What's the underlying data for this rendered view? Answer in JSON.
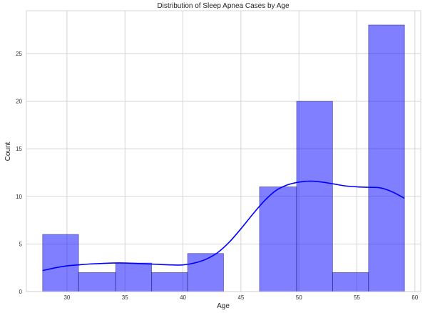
{
  "chart_data": {
    "type": "bar",
    "title": "Distribution of Sleep Apnea Cases by Age",
    "xlabel": "Age",
    "ylabel": "Count",
    "xlim": [
      26.5,
      60.5
    ],
    "ylim": [
      0,
      29.5
    ],
    "xticks": [
      30,
      35,
      40,
      45,
      50,
      55,
      60
    ],
    "yticks": [
      0,
      5,
      10,
      15,
      20,
      25
    ],
    "grid": true,
    "bar_color": "#0000ff",
    "bar_opacity": 0.5,
    "kde_color": "#0000ff",
    "bins": [
      {
        "x0": 27.9,
        "x1": 31.0,
        "count": 6
      },
      {
        "x0": 31.0,
        "x1": 34.2,
        "count": 2
      },
      {
        "x0": 34.2,
        "x1": 37.3,
        "count": 3
      },
      {
        "x0": 37.3,
        "x1": 40.4,
        "count": 2
      },
      {
        "x0": 40.4,
        "x1": 43.5,
        "count": 4
      },
      {
        "x0": 43.5,
        "x1": 46.6,
        "count": 0
      },
      {
        "x0": 46.6,
        "x1": 49.8,
        "count": 11
      },
      {
        "x0": 49.8,
        "x1": 52.9,
        "count": 20
      },
      {
        "x0": 52.9,
        "x1": 56.0,
        "count": 2
      },
      {
        "x0": 56.0,
        "x1": 59.1,
        "count": 28
      }
    ],
    "kde": [
      [
        27.9,
        2.2
      ],
      [
        29.0,
        2.5
      ],
      [
        30.0,
        2.7
      ],
      [
        31.0,
        2.8
      ],
      [
        32.0,
        2.9
      ],
      [
        33.0,
        2.95
      ],
      [
        34.0,
        3.0
      ],
      [
        35.0,
        3.0
      ],
      [
        36.0,
        2.95
      ],
      [
        37.0,
        2.9
      ],
      [
        38.0,
        2.85
      ],
      [
        39.0,
        2.8
      ],
      [
        40.0,
        2.8
      ],
      [
        41.0,
        3.0
      ],
      [
        42.0,
        3.4
      ],
      [
        43.0,
        4.1
      ],
      [
        44.0,
        5.2
      ],
      [
        45.0,
        6.6
      ],
      [
        46.0,
        8.1
      ],
      [
        47.0,
        9.5
      ],
      [
        48.0,
        10.6
      ],
      [
        49.0,
        11.2
      ],
      [
        50.0,
        11.5
      ],
      [
        51.0,
        11.6
      ],
      [
        52.0,
        11.5
      ],
      [
        53.0,
        11.3
      ],
      [
        54.0,
        11.1
      ],
      [
        55.0,
        11.0
      ],
      [
        56.0,
        10.95
      ],
      [
        57.0,
        10.9
      ],
      [
        58.0,
        10.5
      ],
      [
        59.1,
        9.8
      ]
    ]
  }
}
